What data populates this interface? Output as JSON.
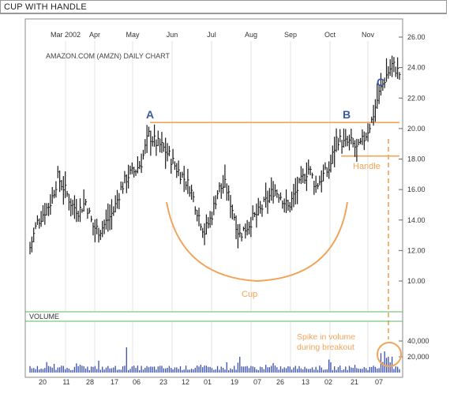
{
  "window": {
    "title": "CUP WITH HANDLE"
  },
  "chart_data": {
    "type": "candlestick",
    "chart_label": "AMAZON.COM (AMZN) DAILY CHART",
    "months": [
      "Mar 2002",
      "Apr",
      "May",
      "Jun",
      "Jul",
      "Aug",
      "Sep",
      "Oct",
      "Nov"
    ],
    "date_ticks": [
      "20",
      "11",
      "28",
      "17",
      "06",
      "23",
      "12",
      "01",
      "19",
      "07",
      "26",
      "13",
      "02",
      "21",
      "07"
    ],
    "ylim": [
      8,
      26
    ],
    "yticks": [
      10,
      12,
      14,
      16,
      18,
      20,
      22,
      24,
      26
    ],
    "ytick_labels": [
      "10.00",
      "12.00",
      "14.00",
      "16.00",
      "18.00",
      "20.00",
      "22.00",
      "24.00",
      "26.00"
    ],
    "price_series_close": [
      12.2,
      13.8,
      14.5,
      15.2,
      16.8,
      16.0,
      15.0,
      14.6,
      15.2,
      13.6,
      13.3,
      13.9,
      14.6,
      16.0,
      16.9,
      17.2,
      17.8,
      19.6,
      19.1,
      18.8,
      18.2,
      17.4,
      16.8,
      16.1,
      14.6,
      13.2,
      14.2,
      16.0,
      16.3,
      14.8,
      13.0,
      13.5,
      14.1,
      14.6,
      15.3,
      16.0,
      15.6,
      14.8,
      15.7,
      16.6,
      17.4,
      16.2,
      16.9,
      17.4,
      19.4,
      19.0,
      19.1,
      18.6,
      19.4,
      20.5,
      22.2,
      23.4,
      24.2,
      23.6
    ],
    "resistance_level": 20.4,
    "handle_level": 18.2,
    "volume_label": "VOLUME",
    "volume_ticks": [
      20000,
      40000
    ],
    "volume_tick_labels": [
      "20,000",
      "40,000"
    ],
    "annotations": {
      "A": "A",
      "B": "B",
      "C": "C",
      "cup": "Cup",
      "handle": "Handle",
      "spike_line1": "Spike in volume",
      "spike_line2": "during breakout"
    },
    "colors": {
      "price": "#1a1a1a",
      "volume": "#3a4fb0",
      "annotation": "#f2a55a",
      "letters": "#3b5a9a",
      "grid": "#d8d8d8",
      "volume_band": "#5cb85c"
    }
  }
}
